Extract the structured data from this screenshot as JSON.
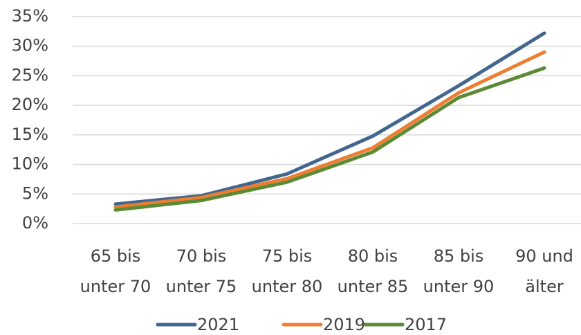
{
  "chart_data": {
    "type": "line",
    "categories": [
      "65 bis unter 70",
      "70 bis unter 75",
      "75 bis unter 80",
      "80 bis unter 85",
      "85 bis unter 90",
      "90 und älter"
    ],
    "series": [
      {
        "name": "2021",
        "color": "#41678f",
        "values": [
          3.3,
          4.7,
          8.4,
          14.8,
          23.3,
          32.2
        ]
      },
      {
        "name": "2019",
        "color": "#ed7d31",
        "values": [
          2.8,
          4.4,
          7.6,
          12.8,
          22.1,
          29.0
        ]
      },
      {
        "name": "2017",
        "color": "#5a8a34",
        "values": [
          2.3,
          3.9,
          7.0,
          12.1,
          21.3,
          26.3
        ]
      }
    ],
    "ylim": [
      0,
      35
    ],
    "yticks": [
      {
        "value": 0,
        "label": "0%"
      },
      {
        "value": 5,
        "label": "5%"
      },
      {
        "value": 10,
        "label": "10%"
      },
      {
        "value": 15,
        "label": "15%"
      },
      {
        "value": 20,
        "label": "20%"
      },
      {
        "value": 25,
        "label": "25%"
      },
      {
        "value": 30,
        "label": "30%"
      },
      {
        "value": 35,
        "label": "35%"
      }
    ],
    "grid": true,
    "legend": "bottom"
  }
}
